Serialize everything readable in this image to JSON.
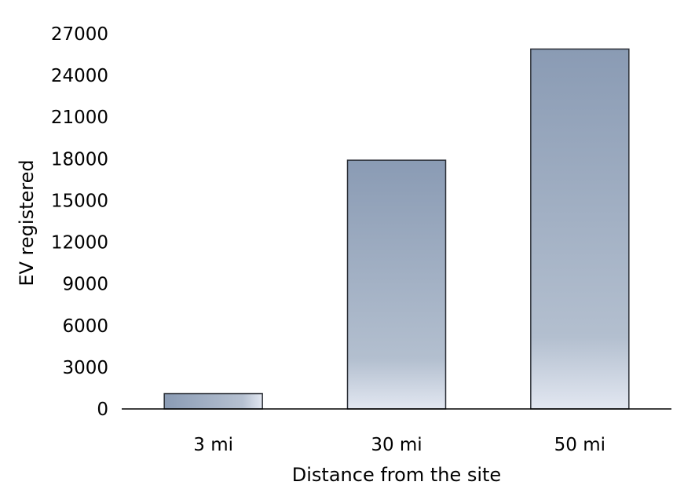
{
  "chart_data": {
    "type": "bar",
    "title": "",
    "xlabel": "Distance from the site",
    "ylabel": "EV registered",
    "categories": [
      "3 mi",
      "30 mi",
      "50 mi"
    ],
    "values": [
      1100,
      17900,
      25900
    ],
    "ylim": [
      0,
      27000
    ],
    "yticks": [
      "0",
      "3000",
      "6000",
      "9000",
      "12000",
      "15000",
      "18000",
      "21000",
      "24000",
      "27000"
    ],
    "grid": false,
    "legend": "none",
    "colors": {
      "bar_top": "#8a9bb4",
      "bar_bottom": "#dde3ef",
      "bar_stroke": "#2b2f36",
      "axis": "#000000"
    }
  }
}
